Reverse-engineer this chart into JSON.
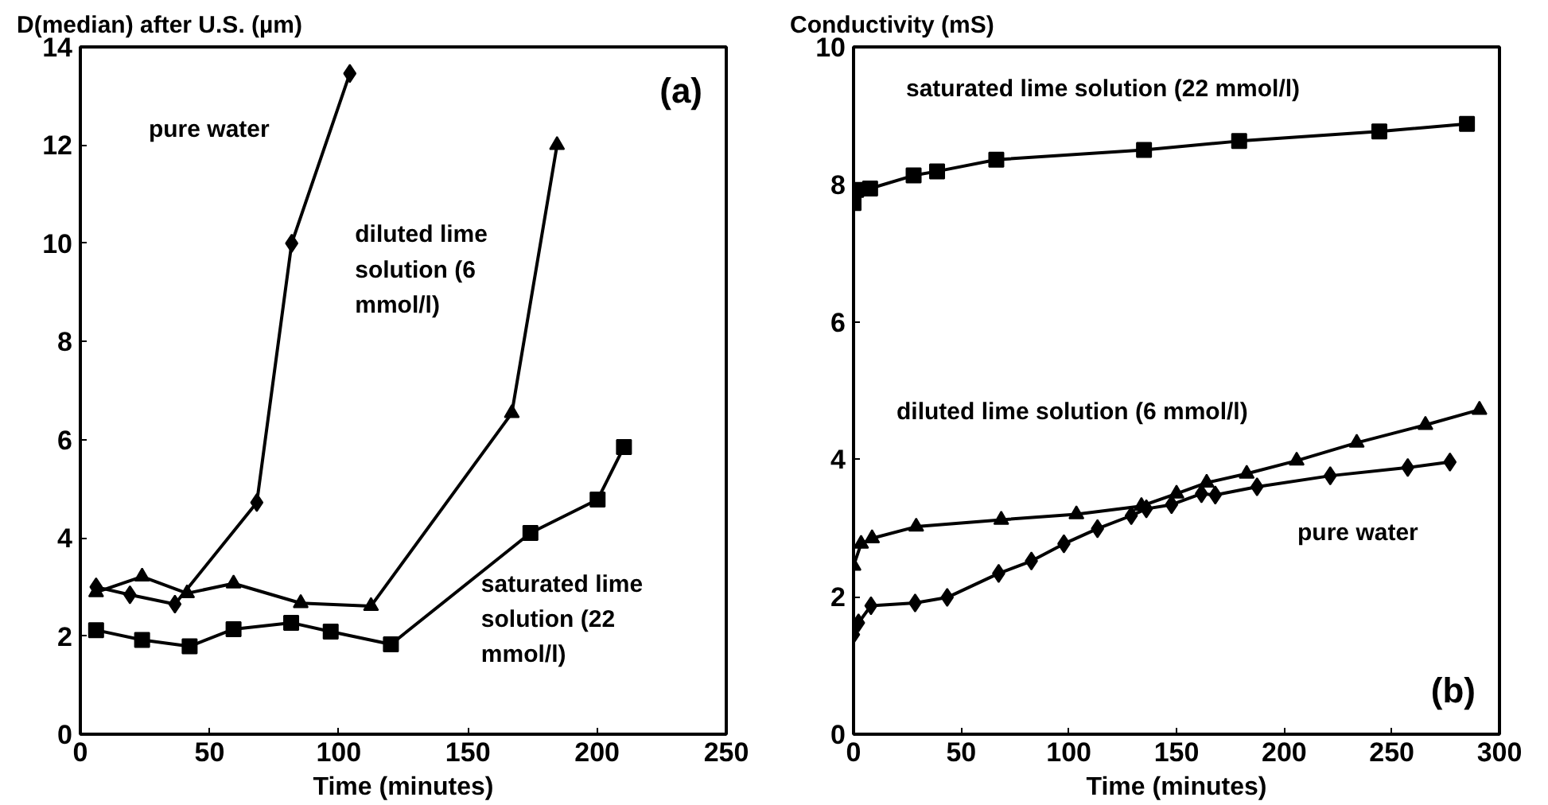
{
  "chart_data": [
    {
      "type": "line",
      "ylabel": "D(median) after U.S. (µm)",
      "xlabel": "Time (minutes)",
      "annotations": [
        "(a)"
      ],
      "xlim": [
        0,
        250
      ],
      "ylim": [
        0,
        14
      ],
      "xticks": [
        0,
        50,
        100,
        150,
        200,
        250
      ],
      "yticks": [
        0,
        2,
        4,
        6,
        8,
        10,
        12,
        14
      ],
      "grid": false,
      "series": [
        {
          "name": "pure water",
          "color": "#000000",
          "marker": "diamond",
          "x": [
            6.1,
            19.2,
            36.6,
            68.3,
            81.8,
            104.3
          ],
          "values": [
            3.0,
            2.84,
            2.65,
            4.72,
            10.0,
            13.46
          ]
        },
        {
          "name": "diluted lime solution (6 mmol/l)",
          "color": "#000000",
          "marker": "triangle",
          "x": [
            6.1,
            23.9,
            41.3,
            59.3,
            85.3,
            112.5,
            167,
            184.5
          ],
          "values": [
            2.89,
            3.21,
            2.87,
            3.07,
            2.67,
            2.61,
            6.54,
            12.0
          ]
        },
        {
          "name": "saturated lime solution (22 mmol/l)",
          "color": "#000000",
          "marker": "square",
          "x": [
            6.1,
            23.9,
            42.3,
            59.3,
            81.6,
            96.9,
            120.2,
            174.2,
            200.2,
            210.4
          ],
          "values": [
            2.12,
            1.92,
            1.79,
            2.14,
            2.27,
            2.09,
            1.83,
            4.1,
            4.78,
            5.85
          ]
        }
      ]
    },
    {
      "type": "line",
      "ylabel": "Conductivity (mS)",
      "xlabel": "Time (minutes)",
      "annotations": [
        "(b)"
      ],
      "xlim": [
        0,
        300
      ],
      "ylim": [
        0,
        10
      ],
      "xticks": [
        0,
        50,
        100,
        150,
        200,
        250,
        300
      ],
      "yticks": [
        0,
        2,
        4,
        6,
        8,
        10
      ],
      "grid": false,
      "series": [
        {
          "name": "saturated lime solution (22 mmol/l)",
          "color": "#000000",
          "marker": "square",
          "x": [
            0,
            1.2,
            7.7,
            27.9,
            38.8,
            66.3,
            134.9,
            179.1,
            244.2,
            284.9
          ],
          "values": [
            7.73,
            7.92,
            7.94,
            8.13,
            8.19,
            8.36,
            8.5,
            8.63,
            8.77,
            8.88
          ]
        },
        {
          "name": "diluted lime solution (6 mmol/l)",
          "color": "#000000",
          "marker": "triangle",
          "x": [
            0,
            3.5,
            8.6,
            29.1,
            68.6,
            103.5,
            133.7,
            150,
            164,
            182.6,
            205.8,
            233.7,
            265.6,
            290.7
          ],
          "values": [
            2.45,
            2.77,
            2.85,
            3.02,
            3.12,
            3.2,
            3.32,
            3.5,
            3.66,
            3.79,
            3.98,
            4.24,
            4.5,
            4.72
          ]
        },
        {
          "name": "pure water",
          "color": "#000000",
          "marker": "diamond",
          "x": [
            0,
            2.3,
            8.1,
            28.6,
            43.5,
            67.4,
            82.6,
            97.7,
            113.3,
            129,
            136,
            147.7,
            161.6,
            168,
            187.4,
            221.4,
            257.4,
            277
          ],
          "values": [
            1.45,
            1.62,
            1.87,
            1.91,
            1.99,
            2.34,
            2.52,
            2.77,
            2.99,
            3.18,
            3.28,
            3.34,
            3.5,
            3.48,
            3.6,
            3.76,
            3.88,
            3.96
          ]
        }
      ]
    }
  ]
}
